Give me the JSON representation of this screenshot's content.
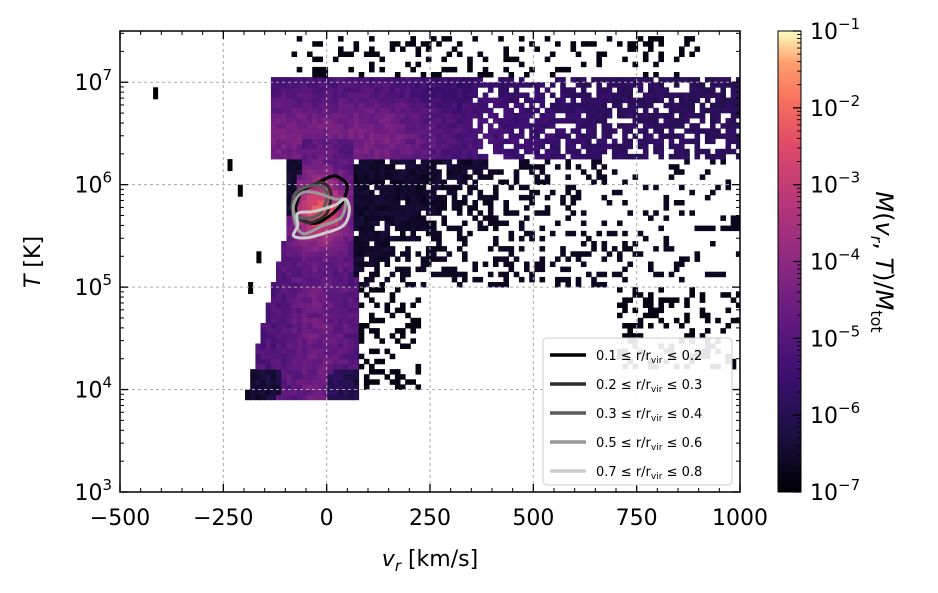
{
  "chart_data": {
    "type": "heatmap",
    "xlabel": "v_r [km/s]",
    "ylabel": "T [K]",
    "xlim": [
      -500,
      1000
    ],
    "ylim_log10": [
      3,
      7.5
    ],
    "y_scale": "log",
    "x_ticks": [
      -500,
      -250,
      0,
      250,
      500,
      750,
      1000
    ],
    "x_tick_labels": [
      "−500",
      "−250",
      "0",
      "250",
      "500",
      "750",
      "1000"
    ],
    "y_ticks_log10": [
      3,
      4,
      5,
      6,
      7
    ],
    "y_tick_labels": [
      "10",
      "10",
      "10",
      "10",
      "10"
    ],
    "y_tick_exps": [
      "3",
      "4",
      "5",
      "6",
      "7"
    ],
    "grid": true,
    "colorbar": {
      "label": "M(v_r, T)/M_tot",
      "scale": "log",
      "range_log10": [
        -7,
        -1
      ],
      "tick_labels": [
        "10",
        "10",
        "10",
        "10",
        "10",
        "10",
        "10"
      ],
      "tick_exps": [
        "−7",
        "−6",
        "−5",
        "−4",
        "−3",
        "−2",
        "−1"
      ],
      "colormap": "magma"
    },
    "density_peak": {
      "vr": -15,
      "log10_T": 5.75
    },
    "legend_placement": "lower-right",
    "series": [
      {
        "name": "0.1 ≤ r/r_vir ≤ 0.2",
        "label_pre": "0.1 ≤ r/r",
        "label_post": " ≤ 0.2",
        "color": "#000000",
        "contour": [
          [
            -30,
            6.0
          ],
          [
            10,
            6.08
          ],
          [
            30,
            6.07
          ],
          [
            50,
            5.98
          ],
          [
            30,
            5.78
          ],
          [
            -20,
            5.63
          ],
          [
            -55,
            5.65
          ],
          [
            -75,
            5.75
          ],
          [
            -60,
            5.93
          ]
        ]
      },
      {
        "name": "0.2 ≤ r/r_vir ≤ 0.3",
        "label_pre": "0.2 ≤ r/r",
        "label_post": " ≤ 0.3",
        "color": "#2d2d2d",
        "contour": [
          [
            -40,
            5.99
          ],
          [
            -10,
            6.02
          ],
          [
            10,
            5.92
          ],
          [
            0,
            5.72
          ],
          [
            -40,
            5.63
          ],
          [
            -70,
            5.68
          ],
          [
            -85,
            5.78
          ],
          [
            -70,
            5.93
          ]
        ]
      },
      {
        "name": "0.3 ≤ r/r_vir ≤ 0.4",
        "label_pre": "0.3 ≤ r/r",
        "label_post": " ≤ 0.4",
        "color": "#5a5a5a",
        "contour": [
          [
            -55,
            5.97
          ],
          [
            -20,
            5.99
          ],
          [
            0,
            5.9
          ],
          [
            -15,
            5.72
          ],
          [
            -55,
            5.67
          ],
          [
            -80,
            5.74
          ],
          [
            -78,
            5.9
          ]
        ]
      },
      {
        "name": "0.5 ≤ r/r_vir ≤ 0.6",
        "label_pre": "0.5 ≤ r/r",
        "label_post": " ≤ 0.6",
        "color": "#999999",
        "contour": [
          [
            -60,
            5.92
          ],
          [
            -25,
            5.92
          ],
          [
            20,
            5.86
          ],
          [
            45,
            5.85
          ],
          [
            35,
            5.68
          ],
          [
            -10,
            5.6
          ],
          [
            -55,
            5.52
          ],
          [
            -75,
            5.62
          ],
          [
            -80,
            5.8
          ]
        ]
      },
      {
        "name": "0.7 ≤ r/r_vir ≤ 0.8",
        "label_pre": "0.7 ≤ r/r",
        "label_post": " ≤ 0.8",
        "color": "#cccccc",
        "contour": [
          [
            -70,
            5.72
          ],
          [
            -30,
            5.74
          ],
          [
            20,
            5.8
          ],
          [
            45,
            5.86
          ],
          [
            55,
            5.75
          ],
          [
            40,
            5.6
          ],
          [
            -10,
            5.52
          ],
          [
            -50,
            5.48
          ],
          [
            -80,
            5.5
          ],
          [
            -70,
            5.6
          ]
        ]
      }
    ]
  }
}
